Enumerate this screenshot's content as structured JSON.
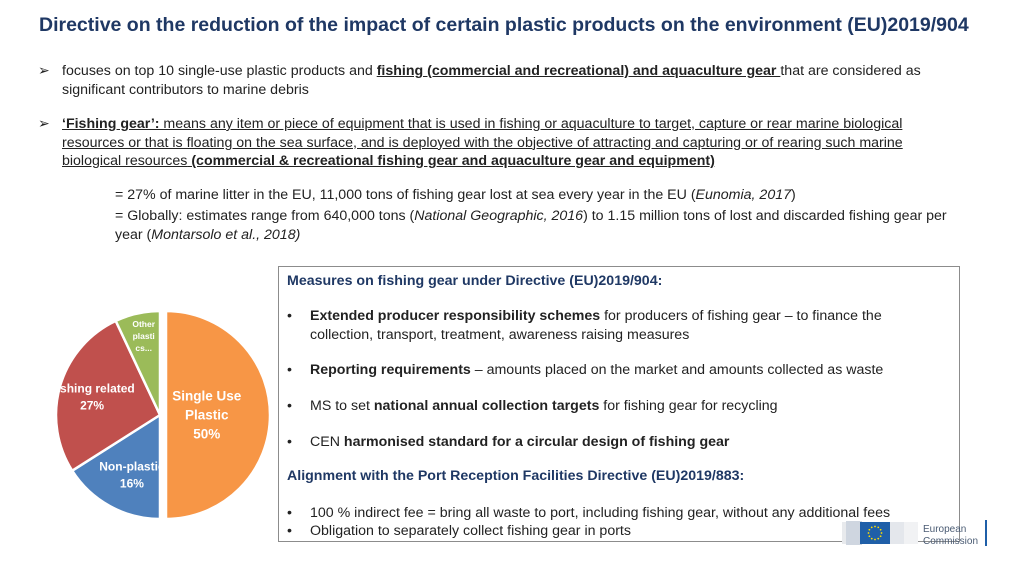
{
  "title": "Directive on the reduction of the impact of certain plastic products on the environment (EU)2019/904",
  "bullet1": {
    "pre": "focuses on top 10 single-use plastic products and ",
    "bold_underlined": "fishing (commercial and recreational) and aquaculture gear ",
    "post": "that are considered as",
    "line2": "significant contributors to marine debris"
  },
  "bullet2": {
    "term": "‘Fishing gear’:",
    "def_line1": " means any item or piece of equipment that is used in fishing or aquaculture to target, capture or rear marine biological",
    "def_line2": "resources or that is floating on the sea surface, and is deployed with the objective of attracting and capturing or of rearing such marine",
    "def_line3": "biological resources",
    "bold_tail": " (commercial & recreational fishing gear and aquaculture gear and equipment)"
  },
  "stats": {
    "line1_pre": "= 27% of marine litter in the EU,  11,000 tons of fishing gear lost at sea every year in the EU (",
    "line1_src": "Eunomia, 2017",
    "line1_post": ")",
    "line2_pre": "= Globally: estimates range from 640,000 tons (",
    "line2_src1": "National Geographic, 2016",
    "line2_mid": ") to 1.15 million tons of lost and discarded fishing gear per",
    "line3_pre": "year (",
    "line3_src": "Montarsolo et al., 2018)"
  },
  "measures_box": {
    "heading": "Measures on fishing gear under Directive (EU)2019/904:",
    "items": [
      {
        "bold": "Extended producer responsibility schemes",
        "rest": " for producers of fishing gear – to finance the",
        "line2": "collection, transport, treatment, awareness raising measures"
      },
      {
        "bold": "Reporting requirements",
        "rest": " – amounts placed on the market and amounts collected as waste"
      },
      {
        "pre": "MS to set ",
        "bold": "national annual collection targets",
        "rest": " for fishing gear for recycling"
      },
      {
        "pre": "CEN ",
        "bold": "harmonised standard for a circular design of fishing gear"
      }
    ],
    "heading2": "Alignment with the Port Reception Facilities Directive (EU)2019/883:",
    "items2": [
      "100 % indirect fee = bring all waste to port, including fishing gear, without any additional fees",
      "Obligation to separately collect fishing gear in ports"
    ],
    "bullet_char": "•"
  },
  "chart_data": {
    "type": "pie",
    "categories": [
      "Single Use Plastic",
      "Non-plastic",
      "Fishing related",
      "Other plastics"
    ],
    "values": [
      50,
      16,
      27,
      7
    ],
    "colors": [
      "#f79646",
      "#4f81bd",
      "#c0504d",
      "#9bbb59"
    ],
    "labels": [
      [
        "Single Use",
        "Plastic",
        "50%"
      ],
      [
        "Non-plastic",
        "16%"
      ],
      [
        "Fishing related",
        "27%"
      ],
      [
        "Other",
        "plasti",
        "cs..."
      ]
    ]
  },
  "logo": {
    "line1": "European",
    "line2": "Commission",
    "flag_color": "#1f5fa8",
    "star_color": "#ffdd00"
  }
}
